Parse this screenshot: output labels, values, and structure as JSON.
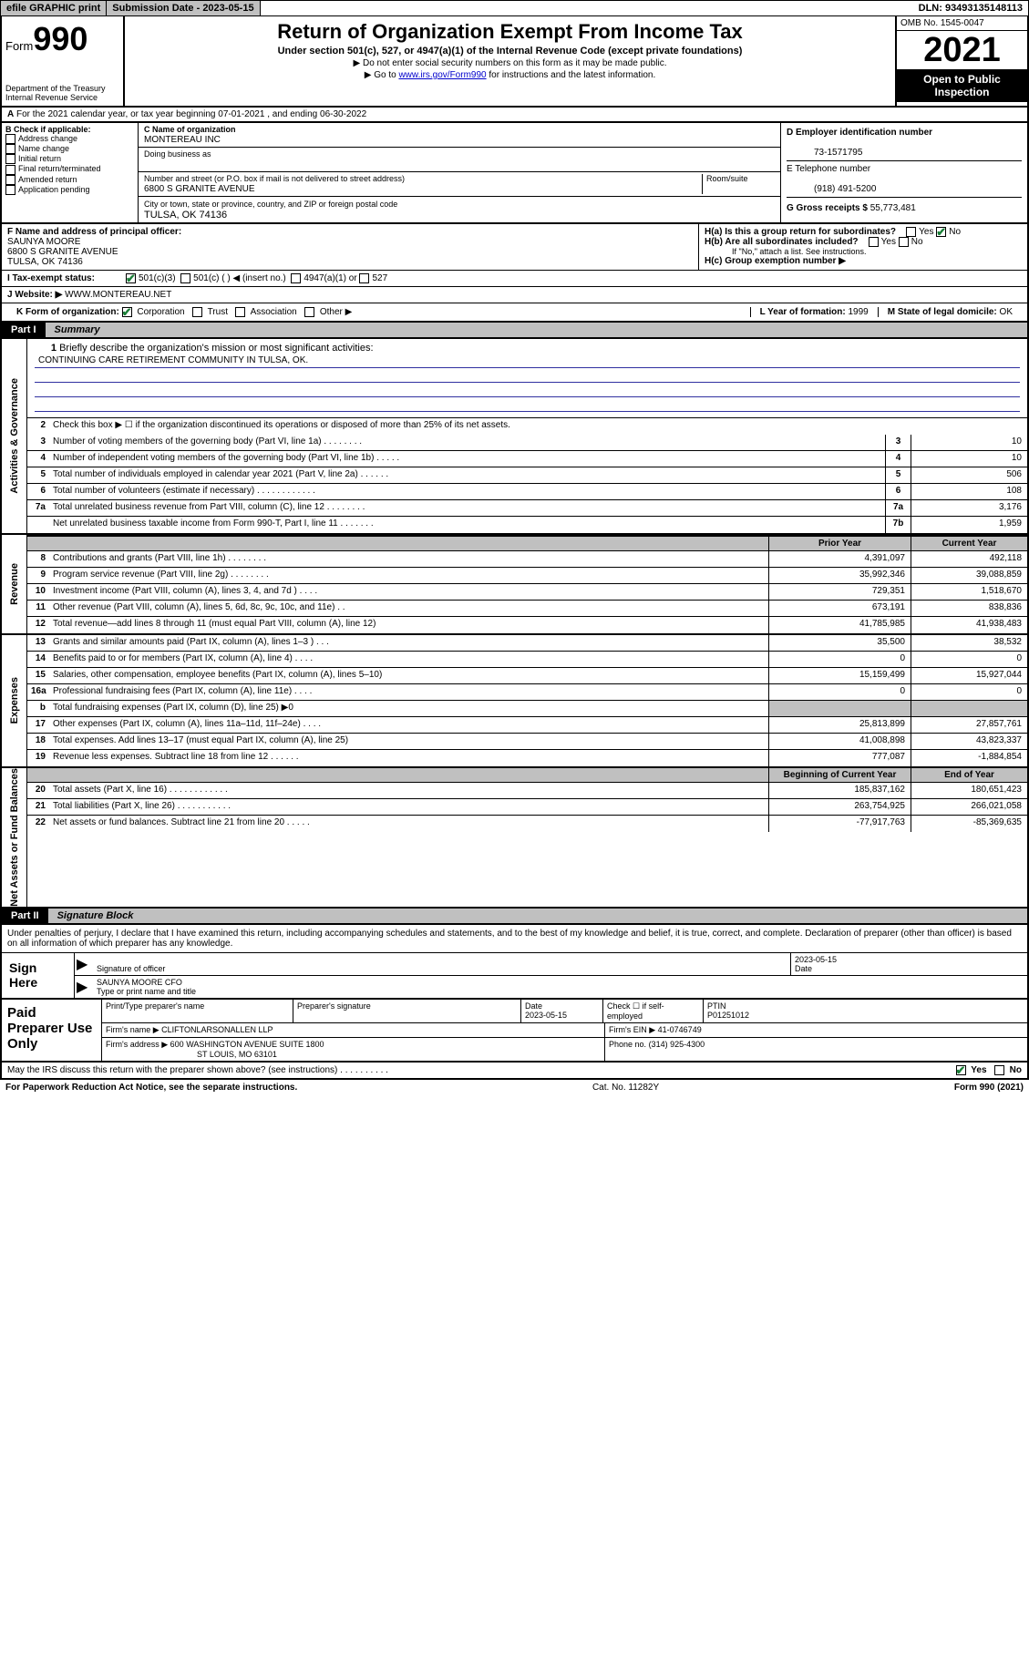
{
  "topbar": {
    "efile": "efile GRAPHIC print",
    "sub_date_lbl": "Submission Date - 2023-05-15",
    "dln": "DLN: 93493135148113"
  },
  "header": {
    "form_word": "Form",
    "form_num": "990",
    "dept": "Department of the Treasury Internal Revenue Service",
    "title": "Return of Organization Exempt From Income Tax",
    "subtitle": "Under section 501(c), 527, or 4947(a)(1) of the Internal Revenue Code (except private foundations)",
    "note1": "▶ Do not enter social security numbers on this form as it may be made public.",
    "note2_pre": "▶ Go to ",
    "note2_link": "www.irs.gov/Form990",
    "note2_post": " for instructions and the latest information.",
    "omb": "OMB No. 1545-0047",
    "year": "2021",
    "open": "Open to Public Inspection"
  },
  "a_line": "For the 2021 calendar year, or tax year beginning 07-01-2021   , and ending 06-30-2022",
  "b": {
    "hdr": "B Check if applicable:",
    "opts": [
      "Address change",
      "Name change",
      "Initial return",
      "Final return/terminated",
      "Amended return",
      "Application pending"
    ]
  },
  "c": {
    "name_lbl": "C Name of organization",
    "name": "MONTEREAU INC",
    "dba_lbl": "Doing business as",
    "addr_lbl": "Number and street (or P.O. box if mail is not delivered to street address)",
    "room_lbl": "Room/suite",
    "addr": "6800 S GRANITE AVENUE",
    "city_lbl": "City or town, state or province, country, and ZIP or foreign postal code",
    "city": "TULSA, OK  74136"
  },
  "d": {
    "lbl": "D Employer identification number",
    "val": "73-1571795"
  },
  "e": {
    "lbl": "E Telephone number",
    "val": "(918) 491-5200"
  },
  "g": {
    "lbl": "G Gross receipts $",
    "val": "55,773,481"
  },
  "f": {
    "lbl": "F  Name and address of principal officer:",
    "name": "SAUNYA MOORE",
    "addr1": "6800 S GRANITE AVENUE",
    "addr2": "TULSA, OK  74136"
  },
  "h": {
    "a_lbl": "H(a)  Is this a group return for subordinates?",
    "a_yes": "Yes",
    "a_no": "No",
    "b_lbl": "H(b)  Are all subordinates included?",
    "b_note": "If \"No,\" attach a list. See instructions.",
    "c_lbl": "H(c)  Group exemption number ▶"
  },
  "i": {
    "lbl": "I     Tax-exempt status:",
    "o1": "501(c)(3)",
    "o2": "501(c) (  ) ◀ (insert no.)",
    "o3": "4947(a)(1) or",
    "o4": "527"
  },
  "j": {
    "lbl": "J    Website: ▶",
    "val": "WWW.MONTEREAU.NET"
  },
  "k": {
    "lbl": "K Form of organization:",
    "o1": "Corporation",
    "o2": "Trust",
    "o3": "Association",
    "o4": "Other ▶",
    "l_lbl": "L Year of formation:",
    "l_val": "1999",
    "m_lbl": "M State of legal domicile:",
    "m_val": "OK"
  },
  "part1": {
    "num": "Part I",
    "title": "Summary"
  },
  "mission": {
    "q": "Briefly describe the organization's mission or most significant activities:",
    "a": "CONTINUING CARE RETIREMENT COMMUNITY IN TULSA, OK."
  },
  "line2": "Check this box ▶ ☐  if the organization discontinued its operations or disposed of more than 25% of its net assets.",
  "lines_a": [
    {
      "n": "3",
      "t": "Number of voting members of the governing body (Part VI, line 1a)  .    .    .    .    .    .    .    .",
      "bn": "3",
      "v": "10"
    },
    {
      "n": "4",
      "t": "Number of independent voting members of the governing body (Part VI, line 1b)  .    .    .    .    .",
      "bn": "4",
      "v": "10"
    },
    {
      "n": "5",
      "t": "Total number of individuals employed in calendar year 2021 (Part V, line 2a)  .    .    .    .    .    .",
      "bn": "5",
      "v": "506"
    },
    {
      "n": "6",
      "t": "Total number of volunteers (estimate if necessary)  .    .    .    .    .    .    .    .    .    .    .    .",
      "bn": "6",
      "v": "108"
    },
    {
      "n": "7a",
      "t": "Total unrelated business revenue from Part VIII, column (C), line 12  .    .    .    .    .    .    .    .",
      "bn": "7a",
      "v": "3,176"
    },
    {
      "n": "",
      "t": "Net unrelated business taxable income from Form 990-T, Part I, line 11  .    .    .    .    .    .    .",
      "bn": "7b",
      "v": "1,959"
    }
  ],
  "yrhdr": {
    "prior": "Prior Year",
    "current": "Current Year"
  },
  "revenue": [
    {
      "n": "8",
      "t": "Contributions and grants (Part VIII, line 1h)  .    .    .    .    .    .    .    .",
      "p": "4,391,097",
      "c": "492,118"
    },
    {
      "n": "9",
      "t": "Program service revenue (Part VIII, line 2g)  .    .    .    .    .    .    .    .",
      "p": "35,992,346",
      "c": "39,088,859"
    },
    {
      "n": "10",
      "t": "Investment income (Part VIII, column (A), lines 3, 4, and 7d )  .    .    .    .",
      "p": "729,351",
      "c": "1,518,670"
    },
    {
      "n": "11",
      "t": "Other revenue (Part VIII, column (A), lines 5, 6d, 8c, 9c, 10c, and 11e)  .    .",
      "p": "673,191",
      "c": "838,836"
    },
    {
      "n": "12",
      "t": "Total revenue—add lines 8 through 11 (must equal Part VIII, column (A), line 12)",
      "p": "41,785,985",
      "c": "41,938,483"
    }
  ],
  "expenses": [
    {
      "n": "13",
      "t": "Grants and similar amounts paid (Part IX, column (A), lines 1–3 )  .    .    .",
      "p": "35,500",
      "c": "38,532"
    },
    {
      "n": "14",
      "t": "Benefits paid to or for members (Part IX, column (A), line 4)  .    .    .    .",
      "p": "0",
      "c": "0"
    },
    {
      "n": "15",
      "t": "Salaries, other compensation, employee benefits (Part IX, column (A), lines 5–10)",
      "p": "15,159,499",
      "c": "15,927,044"
    },
    {
      "n": "16a",
      "t": "Professional fundraising fees (Part IX, column (A), line 11e)  .    .    .    .",
      "p": "0",
      "c": "0"
    },
    {
      "n": "b",
      "t": "Total fundraising expenses (Part IX, column (D), line 25) ▶0",
      "p": "",
      "c": "",
      "shade": true
    },
    {
      "n": "17",
      "t": "Other expenses (Part IX, column (A), lines 11a–11d, 11f–24e)  .    .    .    .",
      "p": "25,813,899",
      "c": "27,857,761"
    },
    {
      "n": "18",
      "t": "Total expenses. Add lines 13–17 (must equal Part IX, column (A), line 25)",
      "p": "41,008,898",
      "c": "43,823,337"
    },
    {
      "n": "19",
      "t": "Revenue less expenses. Subtract line 18 from line 12  .    .    .    .    .    .",
      "p": "777,087",
      "c": "-1,884,854"
    }
  ],
  "yrhdr2": {
    "prior": "Beginning of Current Year",
    "current": "End of Year"
  },
  "netassets": [
    {
      "n": "20",
      "t": "Total assets (Part X, line 16)  .    .    .    .    .    .    .    .    .    .    .    .",
      "p": "185,837,162",
      "c": "180,651,423"
    },
    {
      "n": "21",
      "t": "Total liabilities (Part X, line 26)  .    .    .    .    .    .    .    .    .    .    .",
      "p": "263,754,925",
      "c": "266,021,058"
    },
    {
      "n": "22",
      "t": "Net assets or fund balances. Subtract line 21 from line 20  .    .    .    .    .",
      "p": "-77,917,763",
      "c": "-85,369,635"
    }
  ],
  "vlabels": {
    "gov": "Activities & Governance",
    "rev": "Revenue",
    "exp": "Expenses",
    "net": "Net Assets or Fund Balances"
  },
  "part2": {
    "num": "Part II",
    "title": "Signature Block"
  },
  "decl": "Under penalties of perjury, I declare that I have examined this return, including accompanying schedules and statements, and to the best of my knowledge and belief, it is true, correct, and complete. Declaration of preparer (other than officer) is based on all information of which preparer has any knowledge.",
  "sign": {
    "lbl": "Sign Here",
    "sig_lbl": "Signature of officer",
    "date": "2023-05-15",
    "date_lbl": "Date",
    "name": "SAUNYA MOORE CFO",
    "name_lbl": "Type or print name and title"
  },
  "prep": {
    "lbl": "Paid Preparer Use Only",
    "r1": {
      "c1": "Print/Type preparer's name",
      "c2": "Preparer's signature",
      "c3_lbl": "Date",
      "c3": "2023-05-15",
      "c4_lbl": "Check ☐ if self-employed",
      "c5_lbl": "PTIN",
      "c5": "P01251012"
    },
    "r2": {
      "lbl": "Firm's name    ▶",
      "val": "CLIFTONLARSONALLEN LLP",
      "ein_lbl": "Firm's EIN ▶",
      "ein": "41-0746749"
    },
    "r3": {
      "lbl": "Firm's address ▶",
      "val1": "600 WASHINGTON AVENUE SUITE 1800",
      "val2": "ST LOUIS, MO  63101",
      "ph_lbl": "Phone no.",
      "ph": "(314) 925-4300"
    }
  },
  "discuss": {
    "t": "May the IRS discuss this return with the preparer shown above? (see instructions)  .    .    .    .    .    .    .    .    .    .",
    "yes": "Yes",
    "no": "No"
  },
  "bottom": {
    "l": "For Paperwork Reduction Act Notice, see the separate instructions.",
    "m": "Cat. No. 11282Y",
    "r": "Form 990 (2021)"
  }
}
